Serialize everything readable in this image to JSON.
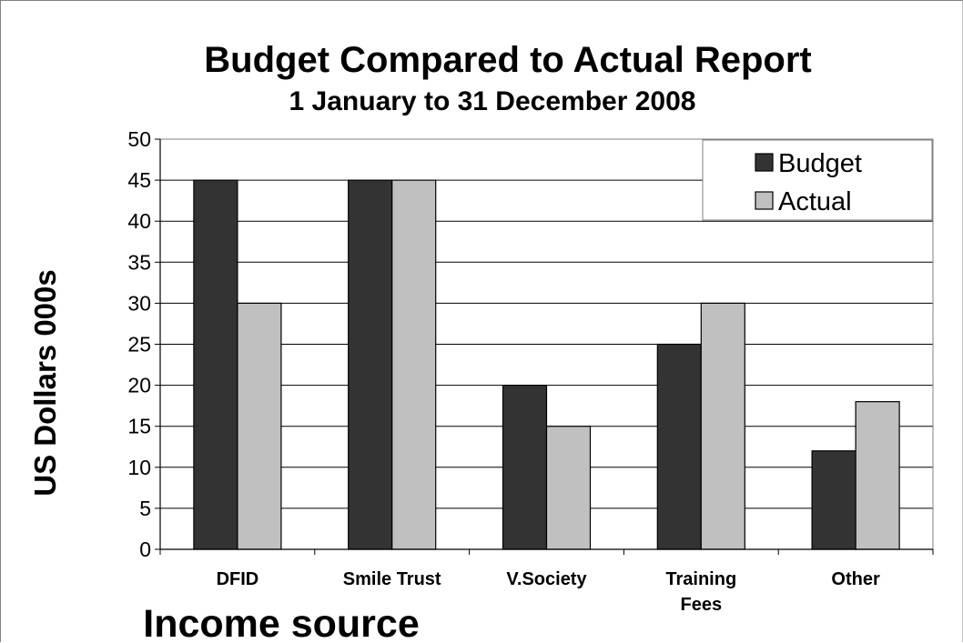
{
  "chart_data": {
    "type": "bar",
    "title": "Budget Compared to Actual Report",
    "subtitle": "1 January to 31 December 2008",
    "xlabel": "Income source",
    "ylabel": "US Dollars 000s",
    "categories": [
      [
        "DFID"
      ],
      [
        "Smile Trust"
      ],
      [
        "V.Society"
      ],
      [
        "Training",
        "Fees"
      ],
      [
        "Other"
      ]
    ],
    "series": [
      {
        "name": "Budget",
        "values": [
          45,
          45,
          20,
          25,
          12
        ],
        "color": "#333333"
      },
      {
        "name": "Actual",
        "values": [
          30,
          45,
          15,
          30,
          18
        ],
        "color": "#c0c0c0"
      }
    ],
    "ylim": [
      0,
      50
    ],
    "yticks": [
      0,
      5,
      10,
      15,
      20,
      25,
      30,
      35,
      40,
      45,
      50
    ],
    "grid": true,
    "legend_position": "top-right"
  }
}
